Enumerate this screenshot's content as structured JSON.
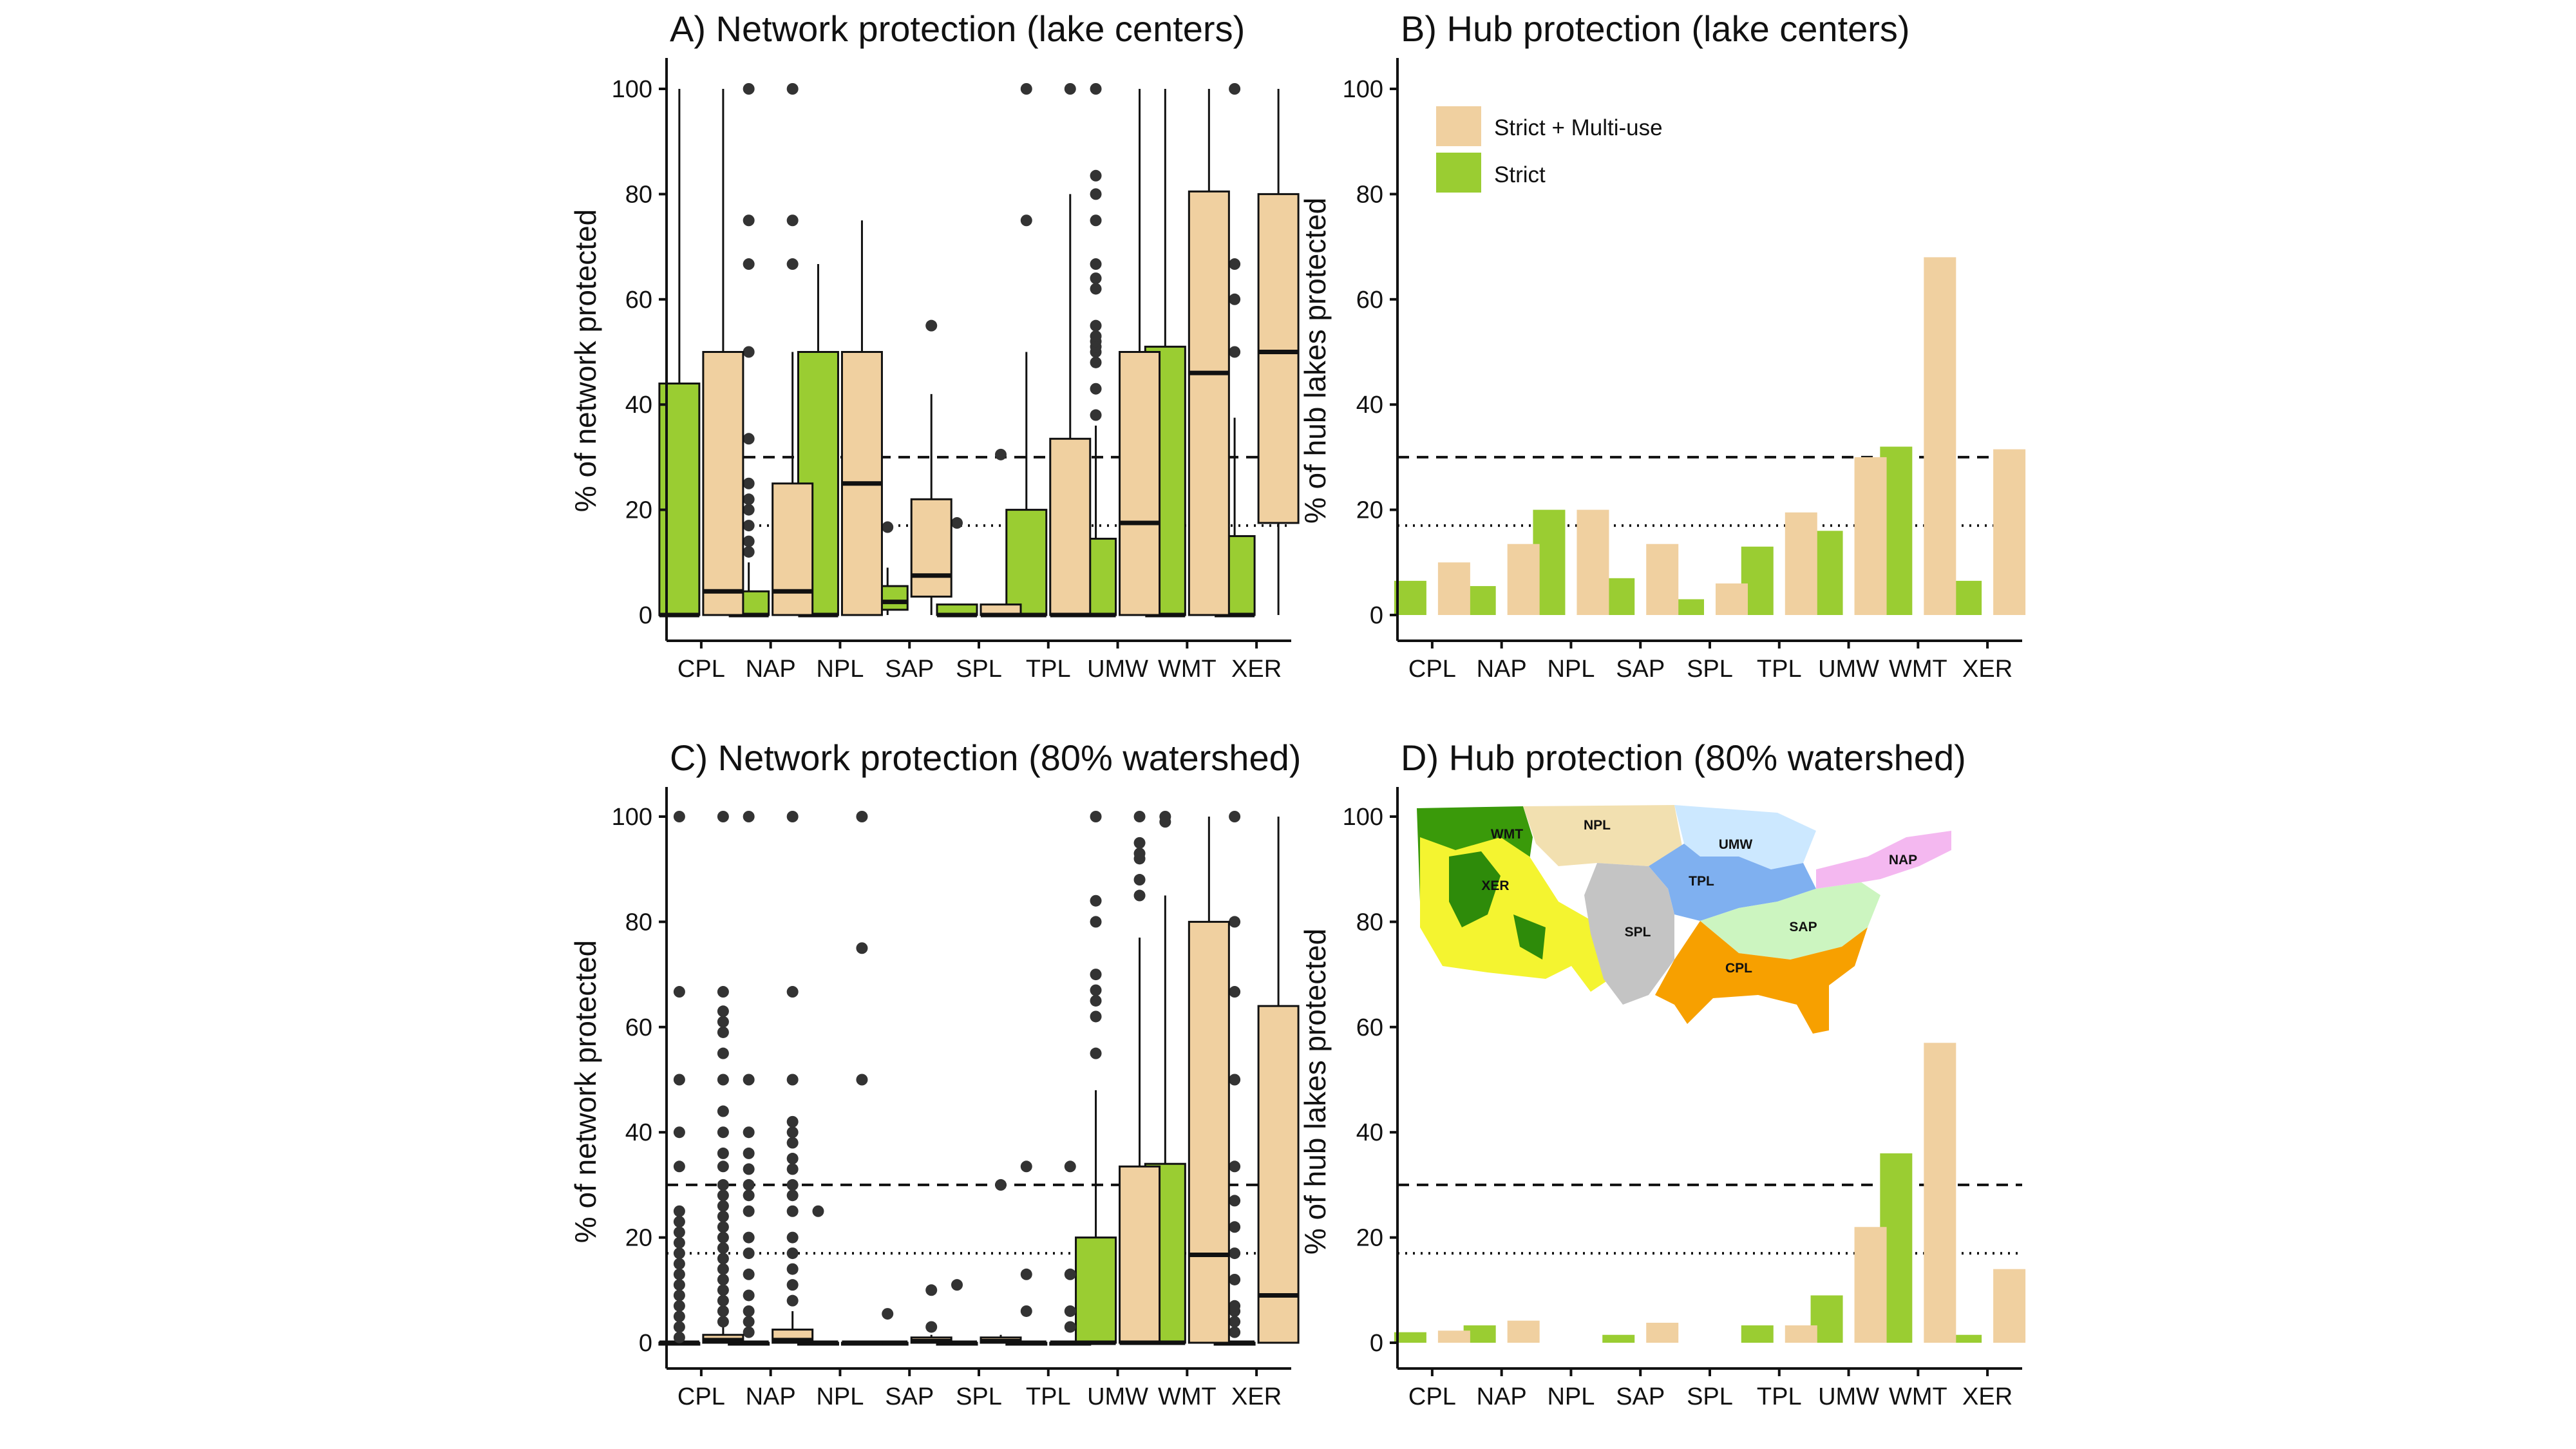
{
  "colors": {
    "strict": "#9acd32",
    "strict_multiuse": "#f0d0a0",
    "box_outline": "#111111",
    "outlier": "#333333"
  },
  "legend": {
    "entries": [
      {
        "label": "Strict + Multi-use",
        "color": "#f0d0a0"
      },
      {
        "label": "Strict",
        "color": "#9acd32"
      }
    ],
    "placement": "top-left (panel B)"
  },
  "map": {
    "description_icon": "us-ecoregions-map-icon",
    "labels": [
      "WMT",
      "NPL",
      "UMW",
      "NAP",
      "XER",
      "TPL",
      "SPL",
      "SAP",
      "CPL"
    ]
  },
  "chart_data": [
    {
      "panel": "A",
      "type": "box",
      "title": "A) Network protection (lake centers)",
      "ylabel": "% of network protected",
      "xlabel": "",
      "ylim": [
        0,
        100
      ],
      "yticks": [
        0,
        20,
        40,
        60,
        80,
        100
      ],
      "categories": [
        "CPL",
        "NAP",
        "NPL",
        "SAP",
        "SPL",
        "TPL",
        "UMW",
        "WMT",
        "XER"
      ],
      "reference_lines": [
        {
          "y": 30,
          "style": "dashed"
        },
        {
          "y": 17,
          "style": "dotted"
        }
      ],
      "series": [
        {
          "name": "Strict",
          "boxes": [
            {
              "q1": 0,
              "median": 0,
              "q3": 44,
              "wlo": 0,
              "whi": 100,
              "outliers": []
            },
            {
              "q1": 0,
              "median": 0,
              "q3": 4.5,
              "wlo": 0,
              "whi": 10,
              "outliers": [
                12,
                14,
                17,
                20,
                22,
                25,
                33.5,
                50,
                66.7,
                75,
                100
              ]
            },
            {
              "q1": 0,
              "median": 0,
              "q3": 50,
              "wlo": 0,
              "whi": 66.7,
              "outliers": []
            },
            {
              "q1": 1,
              "median": 2.5,
              "q3": 5.5,
              "wlo": 0,
              "whi": 9,
              "outliers": [
                16.7
              ]
            },
            {
              "q1": 0,
              "median": 0,
              "q3": 2,
              "wlo": 0,
              "whi": 2,
              "outliers": [
                17.5
              ]
            },
            {
              "q1": 0,
              "median": 0,
              "q3": 20,
              "wlo": 0,
              "whi": 50,
              "outliers": [
                75,
                100
              ]
            },
            {
              "q1": 0,
              "median": 0,
              "q3": 14.5,
              "wlo": 0,
              "whi": 36,
              "outliers": [
                38,
                43,
                48,
                50,
                51,
                52,
                53,
                55,
                62,
                64,
                66.7,
                75,
                80,
                83.5,
                100
              ]
            },
            {
              "q1": 0,
              "median": 0,
              "q3": 51,
              "wlo": 0,
              "whi": 100,
              "outliers": []
            },
            {
              "q1": 0,
              "median": 0,
              "q3": 15,
              "wlo": 0,
              "whi": 37.5,
              "outliers": [
                50,
                60,
                66.7,
                100
              ]
            }
          ]
        },
        {
          "name": "Strict + Multi-use",
          "boxes": [
            {
              "q1": 0,
              "median": 4.5,
              "q3": 50,
              "wlo": 0,
              "whi": 100,
              "outliers": []
            },
            {
              "q1": 0,
              "median": 4.5,
              "q3": 25,
              "wlo": 0,
              "whi": 50,
              "outliers": [
                66.7,
                75,
                100
              ]
            },
            {
              "q1": 0,
              "median": 25,
              "q3": 50,
              "wlo": 0,
              "whi": 75,
              "outliers": []
            },
            {
              "q1": 3.5,
              "median": 7.5,
              "q3": 22,
              "wlo": 0,
              "whi": 42,
              "outliers": [
                55
              ]
            },
            {
              "q1": 0,
              "median": 0,
              "q3": 2,
              "wlo": 0,
              "whi": 2,
              "outliers": [
                30.5
              ]
            },
            {
              "q1": 0,
              "median": 0,
              "q3": 33.5,
              "wlo": 0,
              "whi": 80,
              "outliers": [
                100
              ]
            },
            {
              "q1": 0,
              "median": 17.5,
              "q3": 50,
              "wlo": 0,
              "whi": 100,
              "outliers": []
            },
            {
              "q1": 0,
              "median": 46,
              "q3": 80.5,
              "wlo": 0,
              "whi": 100,
              "outliers": []
            },
            {
              "q1": 17.5,
              "median": 50,
              "q3": 80,
              "wlo": 0,
              "whi": 100,
              "outliers": []
            }
          ]
        }
      ]
    },
    {
      "panel": "B",
      "type": "bar",
      "title": "B) Hub protection (lake centers)",
      "ylabel": "% of hub lakes protected",
      "xlabel": "",
      "ylim": [
        0,
        100
      ],
      "yticks": [
        0,
        20,
        40,
        60,
        80,
        100
      ],
      "categories": [
        "CPL",
        "NAP",
        "NPL",
        "SAP",
        "SPL",
        "TPL",
        "UMW",
        "WMT",
        "XER"
      ],
      "reference_lines": [
        {
          "y": 30,
          "style": "dashed"
        },
        {
          "y": 17,
          "style": "dotted"
        }
      ],
      "series": [
        {
          "name": "Strict",
          "values": [
            6.5,
            5.5,
            20,
            7,
            3,
            13,
            16,
            32,
            6.5
          ]
        },
        {
          "name": "Strict + Multi-use",
          "values": [
            10,
            13.5,
            20,
            13.5,
            6,
            19.5,
            30,
            68,
            31.5
          ]
        }
      ]
    },
    {
      "panel": "C",
      "type": "box",
      "title": "C) Network protection (80% watershed)",
      "ylabel": "% of network protected",
      "xlabel": "",
      "ylim": [
        0,
        100
      ],
      "yticks": [
        0,
        20,
        40,
        60,
        80,
        100
      ],
      "categories": [
        "CPL",
        "NAP",
        "NPL",
        "SAP",
        "SPL",
        "TPL",
        "UMW",
        "WMT",
        "XER"
      ],
      "reference_lines": [
        {
          "y": 30,
          "style": "dashed"
        },
        {
          "y": 17,
          "style": "dotted"
        }
      ],
      "series": [
        {
          "name": "Strict",
          "boxes": [
            {
              "q1": 0,
              "median": 0,
              "q3": 0,
              "wlo": 0,
              "whi": 0,
              "outliers": [
                1,
                3,
                5,
                7,
                9,
                11,
                13,
                15,
                17,
                19,
                21,
                23,
                25,
                33.5,
                40,
                50,
                66.7,
                100
              ]
            },
            {
              "q1": 0,
              "median": 0,
              "q3": 0,
              "wlo": 0,
              "whi": 0,
              "outliers": [
                2,
                4,
                6,
                9,
                13,
                17,
                20,
                25,
                28,
                30,
                33,
                36,
                40,
                50,
                100
              ]
            },
            {
              "q1": 0,
              "median": 0,
              "q3": 0,
              "wlo": 0,
              "whi": 0,
              "outliers": [
                25
              ]
            },
            {
              "q1": 0,
              "median": 0,
              "q3": 0,
              "wlo": 0,
              "whi": 0,
              "outliers": [
                5.5
              ]
            },
            {
              "q1": 0,
              "median": 0,
              "q3": 0,
              "wlo": 0,
              "whi": 0,
              "outliers": [
                11
              ]
            },
            {
              "q1": 0,
              "median": 0,
              "q3": 0,
              "wlo": 0,
              "whi": 0,
              "outliers": [
                6,
                13,
                33.5
              ]
            },
            {
              "q1": 0,
              "median": 0,
              "q3": 20,
              "wlo": 0,
              "whi": 48,
              "outliers": [
                55,
                62,
                65,
                67,
                70,
                80,
                84,
                100
              ]
            },
            {
              "q1": 0,
              "median": 0,
              "q3": 34,
              "wlo": 0,
              "whi": 85,
              "outliers": [
                99,
                100
              ]
            },
            {
              "q1": 0,
              "median": 0,
              "q3": 0,
              "wlo": 0,
              "whi": 0,
              "outliers": [
                2,
                4,
                6,
                7,
                12,
                17,
                22,
                27,
                33.5,
                50,
                66.7,
                80,
                100
              ]
            }
          ]
        },
        {
          "name": "Strict + Multi-use",
          "boxes": [
            {
              "q1": 0,
              "median": 0.5,
              "q3": 1.5,
              "wlo": 0,
              "whi": 3.5,
              "outliers": [
                4,
                6,
                8,
                10,
                12,
                14,
                16,
                18,
                20,
                22,
                24,
                26,
                28,
                30,
                33.5,
                36,
                40,
                44,
                50,
                55,
                59,
                61,
                63,
                66.7,
                100
              ]
            },
            {
              "q1": 0,
              "median": 0.5,
              "q3": 2.5,
              "wlo": 0,
              "whi": 6,
              "outliers": [
                8,
                11,
                14,
                17,
                20,
                25,
                28,
                30,
                33,
                35,
                38,
                40,
                42,
                50,
                66.7,
                100
              ]
            },
            {
              "q1": 0,
              "median": 0,
              "q3": 0,
              "wlo": 0,
              "whi": 0,
              "outliers": [
                50,
                75,
                100
              ]
            },
            {
              "q1": 0,
              "median": 0.3,
              "q3": 1,
              "wlo": 0,
              "whi": 1.5,
              "outliers": [
                3,
                10
              ]
            },
            {
              "q1": 0,
              "median": 0.3,
              "q3": 1,
              "wlo": 0,
              "whi": 1.5,
              "outliers": [
                30
              ]
            },
            {
              "q1": 0,
              "median": 0,
              "q3": 0,
              "wlo": 0,
              "whi": 0,
              "outliers": [
                3,
                6,
                13,
                33.5
              ]
            },
            {
              "q1": 0,
              "median": 0,
              "q3": 33.5,
              "wlo": 0,
              "whi": 77,
              "outliers": [
                85,
                88,
                92,
                93,
                95,
                100
              ]
            },
            {
              "q1": 0,
              "median": 16.7,
              "q3": 80,
              "wlo": 0,
              "whi": 100,
              "outliers": []
            },
            {
              "q1": 0,
              "median": 9,
              "q3": 64,
              "wlo": 0,
              "whi": 100,
              "outliers": []
            }
          ]
        }
      ]
    },
    {
      "panel": "D",
      "type": "bar",
      "title": "D) Hub protection (80% watershed)",
      "ylabel": "% of hub lakes protected",
      "xlabel": "",
      "ylim": [
        0,
        100
      ],
      "yticks": [
        0,
        20,
        40,
        60,
        80,
        100
      ],
      "categories": [
        "CPL",
        "NAP",
        "NPL",
        "SAP",
        "SPL",
        "TPL",
        "UMW",
        "WMT",
        "XER"
      ],
      "reference_lines": [
        {
          "y": 30,
          "style": "dashed"
        },
        {
          "y": 17,
          "style": "dotted"
        }
      ],
      "series": [
        {
          "name": "Strict",
          "values": [
            2,
            3.3,
            0,
            1.5,
            0,
            3.3,
            9,
            36,
            1.5
          ]
        },
        {
          "name": "Strict + Multi-use",
          "values": [
            2.3,
            4.2,
            0,
            3.8,
            0,
            3.3,
            22,
            57,
            14
          ]
        }
      ]
    }
  ]
}
